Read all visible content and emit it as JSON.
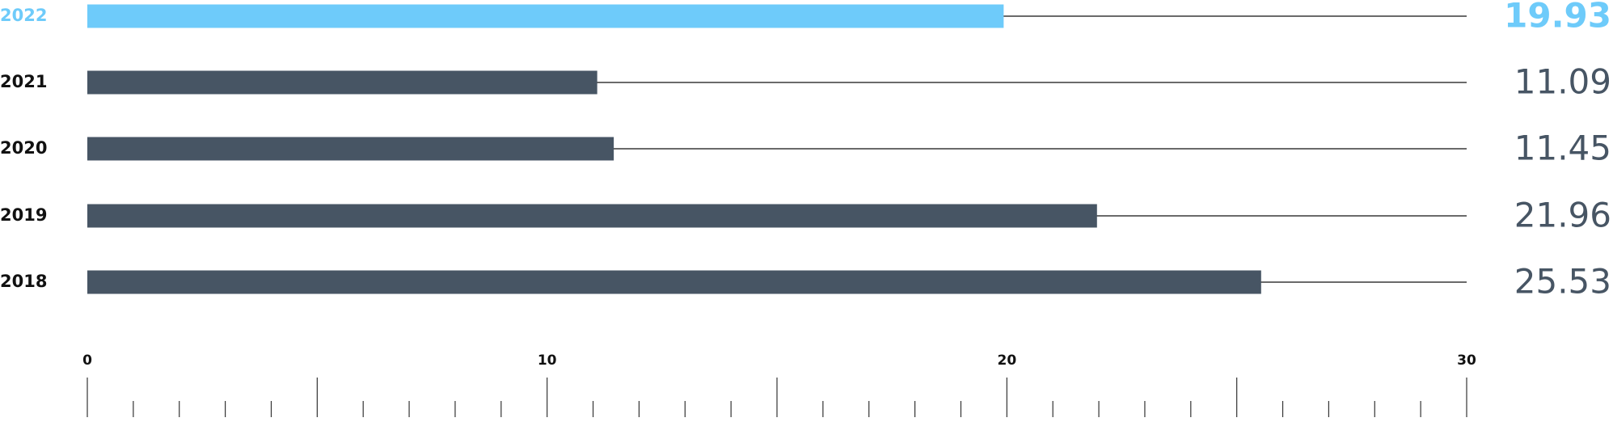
{
  "chart_data": {
    "type": "barh",
    "categories": [
      "2022",
      "2021",
      "2020",
      "2019",
      "2018"
    ],
    "values": [
      19.93,
      11.09,
      11.45,
      21.96,
      25.53
    ],
    "color": "#475564",
    "colors": [
      "#6ecbfa",
      "#475564",
      "#475564",
      "#475564",
      "#475564"
    ],
    "xlim": [
      0,
      30
    ],
    "xticks": [
      0,
      10,
      20,
      30
    ],
    "xminorticks": [
      1,
      2,
      3,
      4,
      5,
      6,
      7,
      8,
      9,
      11,
      12,
      13,
      14,
      15,
      16,
      17,
      18,
      19,
      21,
      22,
      23,
      24,
      25,
      26,
      27,
      28,
      29
    ]
  }
}
